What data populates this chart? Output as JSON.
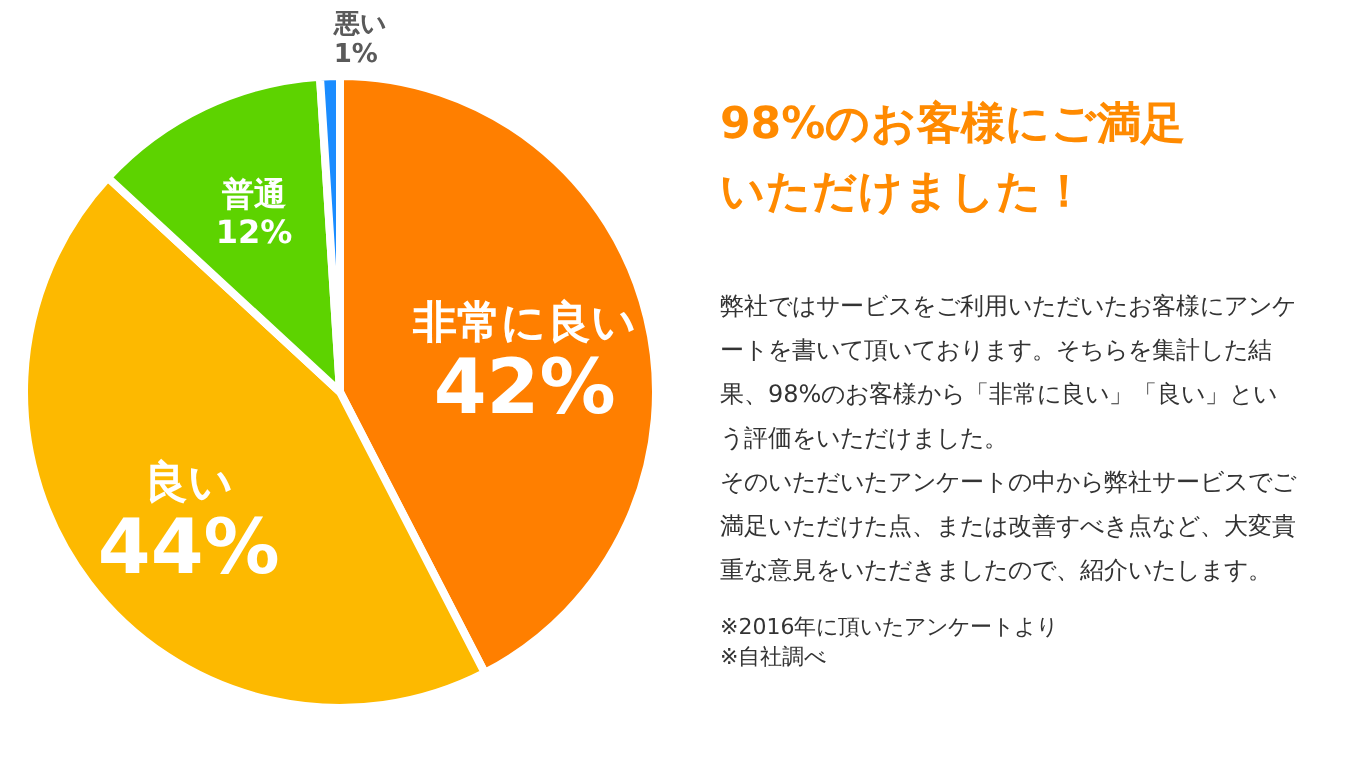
{
  "chart_data": {
    "type": "pie",
    "title": "98%のお客様にご満足いただけました！",
    "categories": [
      "非常に良い",
      "良い",
      "普通",
      "悪い"
    ],
    "values": [
      42,
      44,
      12,
      1
    ],
    "value_labels": [
      "42%",
      "44%",
      "12%",
      "1%"
    ],
    "colors": [
      "#ff7f00",
      "#fdb900",
      "#5dd300",
      "#1a8cff"
    ],
    "legend": false,
    "annotations": [
      "弊社ではサービスをご利用いただいたお客様にアンケートを書いて頂いております。そちらを集計した結果、98%のお客様から「非常に良い」「良い」という評価をいただけました。",
      "そのいただいたアンケートの中から弊社サービスでご満足いただけた点、または改善すべき点など、大変貴重な意見をいただきましたので、紹介いたします。",
      "※2016年に頂いたアンケートより",
      "※自社調べ"
    ]
  }
}
